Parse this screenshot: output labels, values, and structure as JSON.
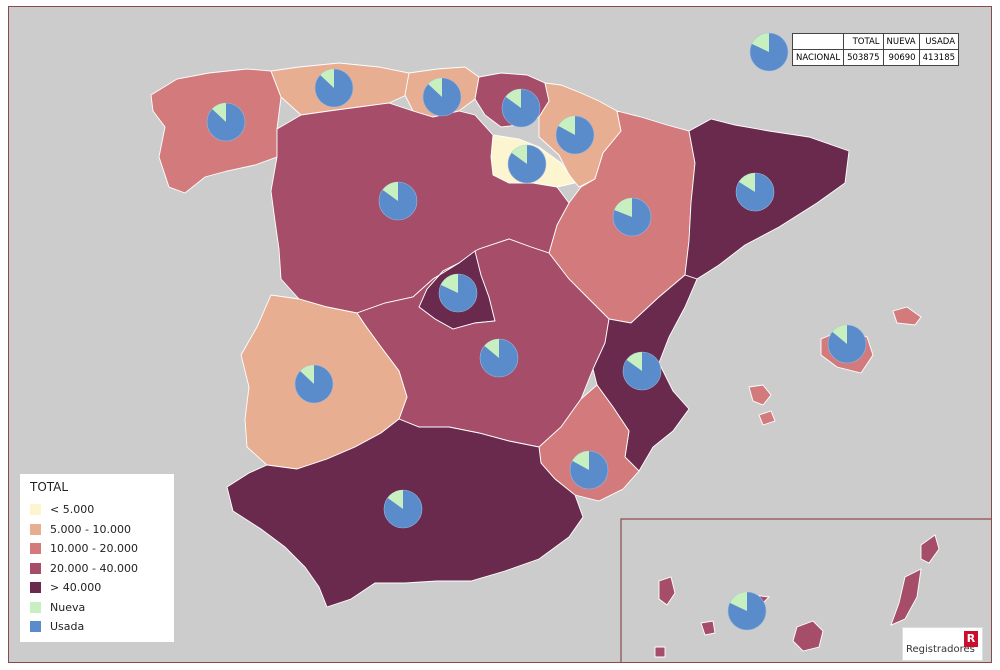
{
  "colors": {
    "sea": "#cccccc",
    "lt5000": "#fdf5cf",
    "r5_10": "#e8ae92",
    "r10_20": "#d37b7c",
    "r20_40": "#a64d6a",
    "gt40000": "#6a2a4d",
    "nueva": "#c7efbf",
    "usada": "#5a8ccb"
  },
  "summary_table": {
    "headers": [
      "",
      "TOTAL",
      "NUEVA",
      "USADA"
    ],
    "row": {
      "label": "NACIONAL",
      "total": "503875",
      "nueva": "90690",
      "usada": "413185"
    }
  },
  "legend": {
    "title": "TOTAL",
    "items": [
      {
        "label": "< 5.000",
        "color": "#fdf5cf",
        "icon": "square-swatch"
      },
      {
        "label": "5.000 - 10.000",
        "color": "#e8ae92",
        "icon": "square-swatch"
      },
      {
        "label": "10.000 - 20.000",
        "color": "#d37b7c",
        "icon": "square-swatch"
      },
      {
        "label": "20.000 - 40.000",
        "color": "#a64d6a",
        "icon": "square-swatch"
      },
      {
        "label": "> 40.000",
        "color": "#6a2a4d",
        "icon": "square-swatch"
      },
      {
        "label": "Nueva",
        "color": "#c7efbf",
        "icon": "square-swatch"
      },
      {
        "label": "Usada",
        "color": "#5a8ccb",
        "icon": "square-swatch"
      }
    ]
  },
  "logo": {
    "text": "Registradores",
    "mark": "R"
  },
  "chart_data": {
    "type": "pie",
    "series_names": [
      "Nueva",
      "Usada"
    ],
    "nacional": {
      "total": 503875,
      "nueva": 90690,
      "usada": 413185
    },
    "regions": [
      {
        "id": "galicia",
        "class": "10.000 - 20.000",
        "nueva_share": 0.13
      },
      {
        "id": "asturias",
        "class": "5.000 - 10.000",
        "nueva_share": 0.13
      },
      {
        "id": "cantabria",
        "class": "5.000 - 10.000",
        "nueva_share": 0.13
      },
      {
        "id": "pais-vasco",
        "class": "20.000 - 40.000",
        "nueva_share": 0.15
      },
      {
        "id": "navarra",
        "class": "5.000 - 10.000",
        "nueva_share": 0.17
      },
      {
        "id": "la-rioja",
        "class": "< 5.000",
        "nueva_share": 0.15
      },
      {
        "id": "aragon",
        "class": "10.000 - 20.000",
        "nueva_share": 0.19
      },
      {
        "id": "cataluna",
        "class": "> 40.000",
        "nueva_share": 0.16
      },
      {
        "id": "castilla-y-leon",
        "class": "20.000 - 40.000",
        "nueva_share": 0.15
      },
      {
        "id": "madrid",
        "class": "> 40.000",
        "nueva_share": 0.18
      },
      {
        "id": "castilla-la-mancha",
        "class": "20.000 - 40.000",
        "nueva_share": 0.14
      },
      {
        "id": "extremadura",
        "class": "5.000 - 10.000",
        "nueva_share": 0.13
      },
      {
        "id": "comunidad-valenciana",
        "class": "> 40.000",
        "nueva_share": 0.15
      },
      {
        "id": "murcia",
        "class": "10.000 - 20.000",
        "nueva_share": 0.17
      },
      {
        "id": "andalucia",
        "class": "> 40.000",
        "nueva_share": 0.15
      },
      {
        "id": "baleares",
        "class": "10.000 - 20.000",
        "nueva_share": 0.14
      },
      {
        "id": "canarias",
        "class": "20.000 - 40.000",
        "nueva_share": 0.18
      }
    ]
  }
}
